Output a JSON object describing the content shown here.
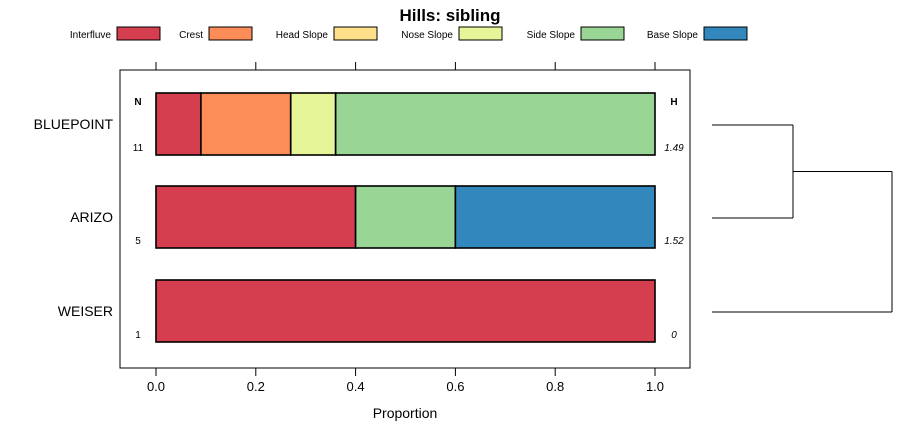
{
  "chart_data": {
    "type": "bar",
    "orientation": "horizontal",
    "stacked": true,
    "title": "Hills: sibling",
    "xlabel": "Proportion",
    "ylabel": "",
    "xlim": [
      0,
      1
    ],
    "x_ticks": [
      "0.0",
      "0.2",
      "0.4",
      "0.6",
      "0.8",
      "1.0"
    ],
    "n_header": "N",
    "h_header": "H",
    "legend": [
      {
        "name": "Interfluve",
        "color": "#D53E4F"
      },
      {
        "name": "Crest",
        "color": "#FC8D59"
      },
      {
        "name": "Head Slope",
        "color": "#FEE08B"
      },
      {
        "name": "Nose Slope",
        "color": "#E6F598"
      },
      {
        "name": "Side Slope",
        "color": "#99D594"
      },
      {
        "name": "Base Slope",
        "color": "#3288BD"
      }
    ],
    "categories": [
      "BLUEPOINT",
      "ARIZO",
      "WEISER"
    ],
    "n_values": [
      "11",
      "5",
      "1"
    ],
    "h_values": [
      "1.49",
      "1.52",
      "0"
    ],
    "series": [
      {
        "name": "Interfluve",
        "values": [
          0.09,
          0.4,
          1.0
        ]
      },
      {
        "name": "Crest",
        "values": [
          0.18,
          0.0,
          0.0
        ]
      },
      {
        "name": "Head Slope",
        "values": [
          0.0,
          0.0,
          0.0
        ]
      },
      {
        "name": "Nose Slope",
        "values": [
          0.09,
          0.0,
          0.0
        ]
      },
      {
        "name": "Side Slope",
        "values": [
          0.64,
          0.2,
          0.0
        ]
      },
      {
        "name": "Base Slope",
        "values": [
          0.0,
          0.4,
          0.0
        ]
      }
    ],
    "dendrogram": {
      "leaves": [
        "BLUEPOINT",
        "ARIZO",
        "WEISER"
      ],
      "merges": [
        {
          "left": "BLUEPOINT",
          "right": "ARIZO",
          "height": 0.45
        },
        {
          "left": "BLUEPOINT+ARIZO",
          "right": "WEISER",
          "height": 1.0
        }
      ]
    }
  }
}
